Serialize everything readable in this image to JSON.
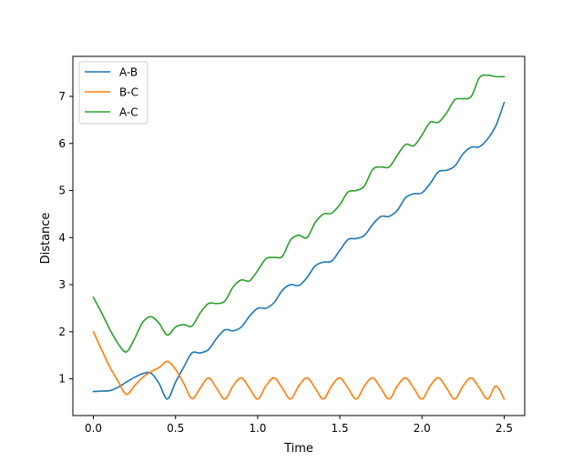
{
  "chart_data": {
    "type": "line",
    "title": "",
    "xlabel": "Time",
    "ylabel": "Distance",
    "xlim": [
      -0.125,
      2.625
    ],
    "ylim": [
      0.22,
      7.85
    ],
    "xticks": [
      0.0,
      0.5,
      1.0,
      1.5,
      2.0,
      2.5
    ],
    "xtick_labels": [
      "0.0",
      "0.5",
      "1.0",
      "1.5",
      "2.0",
      "2.5"
    ],
    "yticks": [
      1,
      2,
      3,
      4,
      5,
      6,
      7
    ],
    "ytick_labels": [
      "1",
      "2",
      "3",
      "4",
      "5",
      "6",
      "7"
    ],
    "grid": false,
    "legend_position": "upper-left",
    "series": [
      {
        "name": "A-B",
        "color": "#1f77b4",
        "x": [
          0.0,
          0.05,
          0.1,
          0.15,
          0.2,
          0.25,
          0.3,
          0.35,
          0.4,
          0.45,
          0.5,
          0.55,
          0.6,
          0.65,
          0.7,
          0.75,
          0.8,
          0.85,
          0.9,
          0.95,
          1.0,
          1.05,
          1.1,
          1.15,
          1.2,
          1.25,
          1.3,
          1.35,
          1.4,
          1.45,
          1.5,
          1.55,
          1.6,
          1.65,
          1.7,
          1.75,
          1.8,
          1.85,
          1.9,
          1.95,
          2.0,
          2.05,
          2.1,
          2.15,
          2.2,
          2.25,
          2.3,
          2.35,
          2.4,
          2.45,
          2.5
        ],
        "y": [
          0.73,
          0.74,
          0.75,
          0.82,
          0.93,
          1.03,
          1.11,
          1.12,
          0.9,
          0.57,
          0.93,
          1.25,
          1.55,
          1.55,
          1.62,
          1.86,
          2.04,
          2.02,
          2.1,
          2.33,
          2.5,
          2.5,
          2.62,
          2.88,
          3.0,
          2.98,
          3.15,
          3.4,
          3.48,
          3.5,
          3.73,
          3.96,
          3.98,
          4.05,
          4.28,
          4.45,
          4.45,
          4.58,
          4.85,
          4.93,
          4.95,
          5.15,
          5.4,
          5.43,
          5.52,
          5.78,
          5.92,
          5.93,
          6.1,
          6.38,
          6.87
        ]
      },
      {
        "name": "B-C",
        "color": "#ff7f0e",
        "x": [
          0.0,
          0.05,
          0.1,
          0.15,
          0.2,
          0.25,
          0.3,
          0.35,
          0.4,
          0.45,
          0.5,
          0.55,
          0.6,
          0.65,
          0.7,
          0.75,
          0.8,
          0.85,
          0.9,
          0.95,
          1.0,
          1.05,
          1.1,
          1.15,
          1.2,
          1.25,
          1.3,
          1.35,
          1.4,
          1.45,
          1.5,
          1.55,
          1.6,
          1.65,
          1.7,
          1.75,
          1.8,
          1.85,
          1.9,
          1.95,
          2.0,
          2.05,
          2.1,
          2.15,
          2.2,
          2.25,
          2.3,
          2.35,
          2.4,
          2.45,
          2.5
        ],
        "y": [
          2.0,
          1.62,
          1.25,
          0.95,
          0.67,
          0.85,
          1.03,
          1.15,
          1.24,
          1.37,
          1.2,
          0.9,
          0.58,
          0.8,
          1.02,
          0.8,
          0.57,
          0.85,
          1.02,
          0.8,
          0.57,
          0.85,
          1.02,
          0.8,
          0.57,
          0.85,
          1.02,
          0.8,
          0.57,
          0.85,
          1.02,
          0.8,
          0.57,
          0.85,
          1.02,
          0.8,
          0.57,
          0.85,
          1.02,
          0.8,
          0.57,
          0.85,
          1.02,
          0.8,
          0.57,
          0.85,
          1.02,
          0.8,
          0.57,
          0.85,
          0.57
        ]
      },
      {
        "name": "A-C",
        "color": "#2ca02c",
        "x": [
          0.0,
          0.05,
          0.1,
          0.15,
          0.2,
          0.25,
          0.3,
          0.35,
          0.4,
          0.45,
          0.5,
          0.55,
          0.6,
          0.65,
          0.7,
          0.75,
          0.8,
          0.85,
          0.9,
          0.95,
          1.0,
          1.05,
          1.1,
          1.15,
          1.2,
          1.25,
          1.3,
          1.35,
          1.4,
          1.45,
          1.5,
          1.55,
          1.6,
          1.65,
          1.7,
          1.75,
          1.8,
          1.85,
          1.9,
          1.95,
          2.0,
          2.05,
          2.1,
          2.15,
          2.2,
          2.25,
          2.3,
          2.35,
          2.4,
          2.45,
          2.5
        ],
        "y": [
          2.73,
          2.4,
          2.05,
          1.75,
          1.57,
          1.85,
          2.2,
          2.32,
          2.18,
          1.93,
          2.1,
          2.15,
          2.12,
          2.4,
          2.6,
          2.6,
          2.65,
          2.95,
          3.1,
          3.08,
          3.3,
          3.55,
          3.58,
          3.6,
          3.95,
          4.05,
          4.0,
          4.32,
          4.5,
          4.52,
          4.7,
          4.97,
          5.0,
          5.1,
          5.45,
          5.5,
          5.5,
          5.75,
          5.98,
          5.95,
          6.18,
          6.45,
          6.45,
          6.65,
          6.93,
          6.95,
          7.0,
          7.4,
          7.45,
          7.42,
          7.42
        ]
      }
    ]
  }
}
